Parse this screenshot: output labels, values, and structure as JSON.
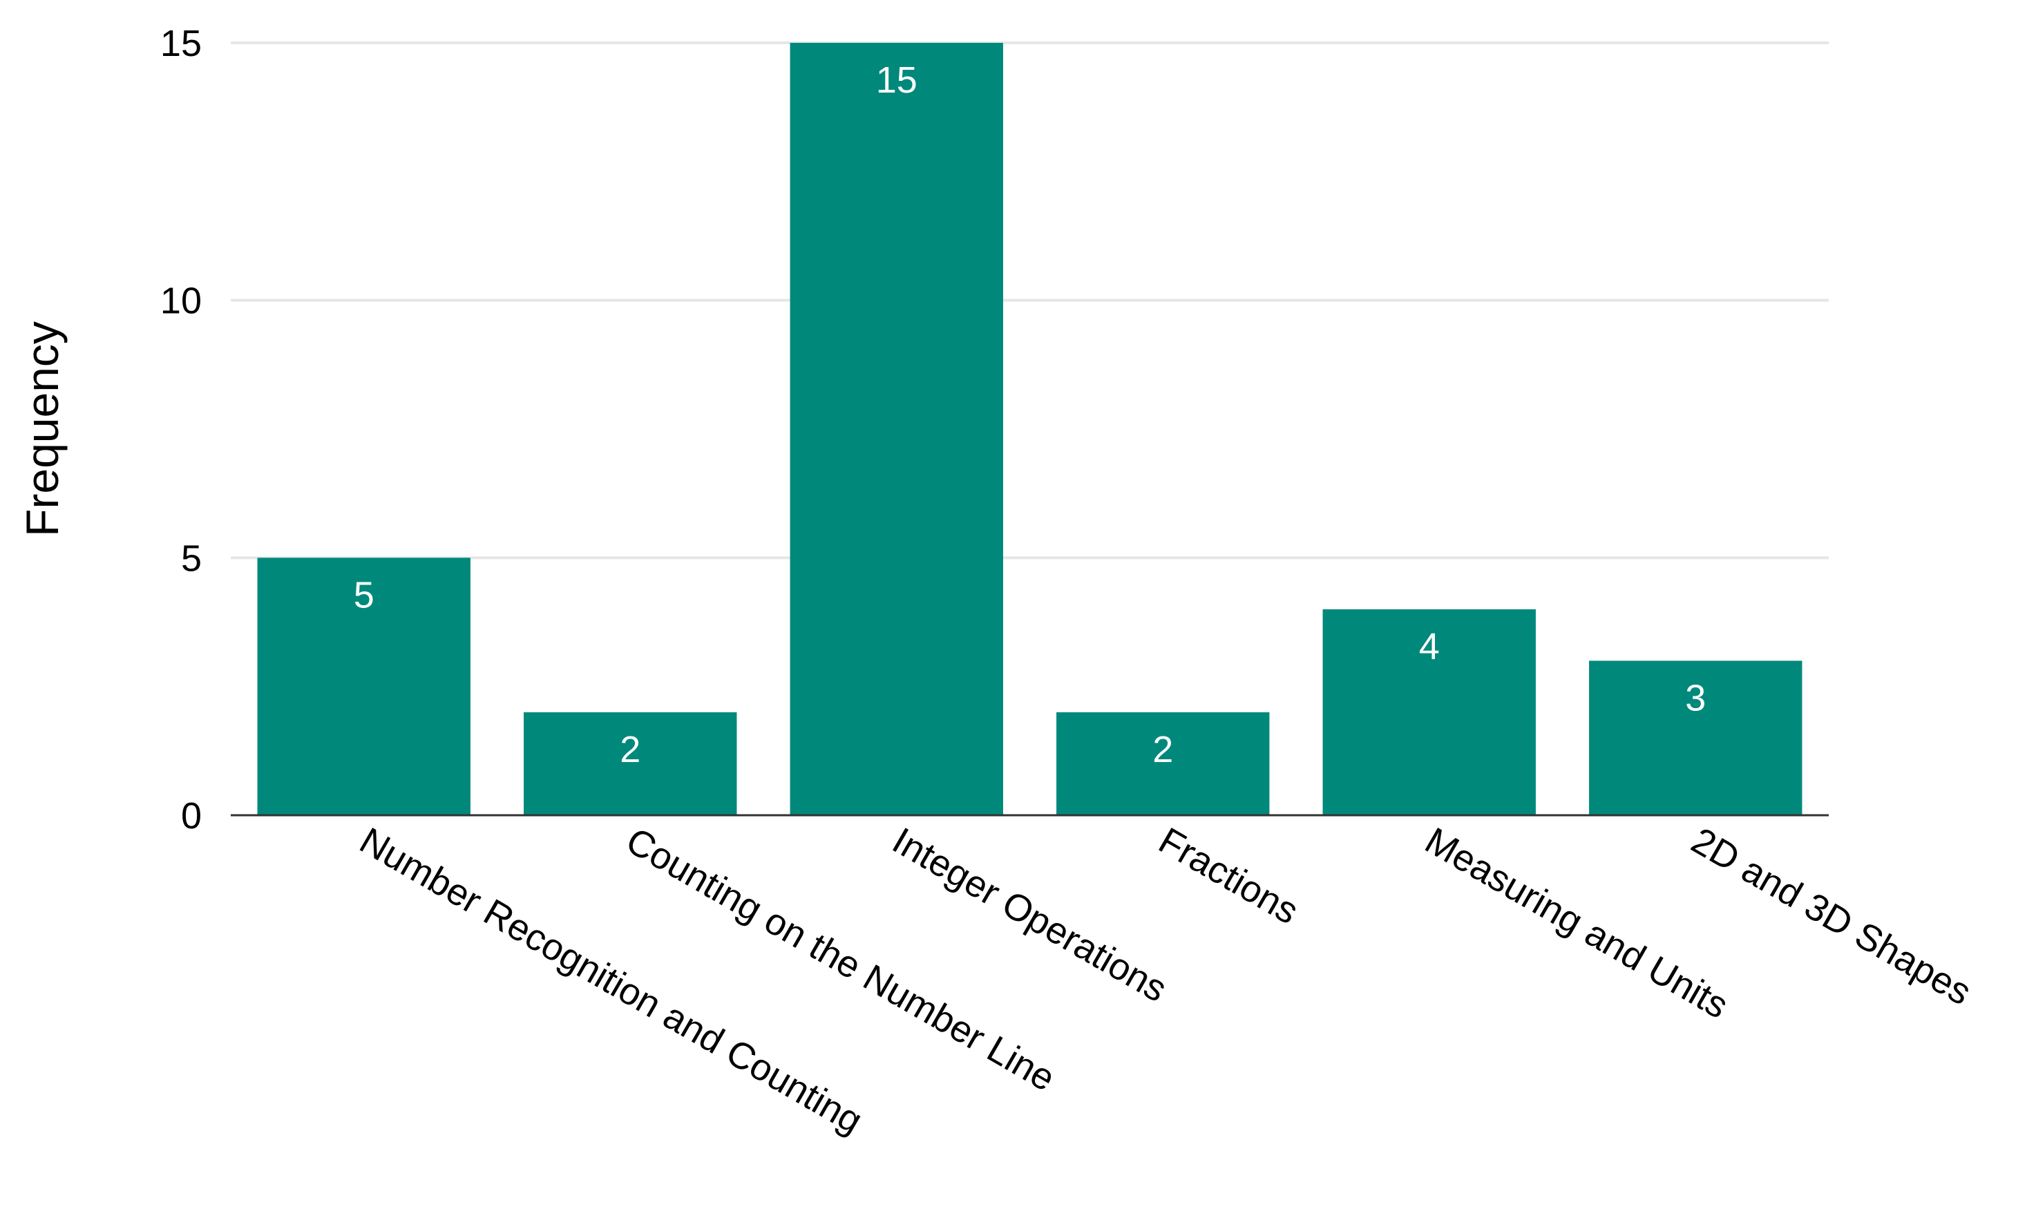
{
  "chart_data": {
    "type": "bar",
    "title": "",
    "xlabel": "",
    "ylabel": "Frequency",
    "categories": [
      "Number Recognition and Counting",
      "Counting on the Number Line",
      "Integer Operations",
      "Fractions",
      "Measuring and Units",
      "2D and 3D Shapes"
    ],
    "values": [
      5,
      2,
      15,
      2,
      4,
      3
    ],
    "data_labels": [
      "5",
      "2",
      "15",
      "2",
      "4",
      "3"
    ],
    "ylim": [
      0,
      15
    ],
    "yticks": [
      "0",
      "5",
      "10",
      "15"
    ],
    "grid": true,
    "legend": "none",
    "bar_color": "#00897B",
    "data_label_color": "#FFFFFF"
  }
}
